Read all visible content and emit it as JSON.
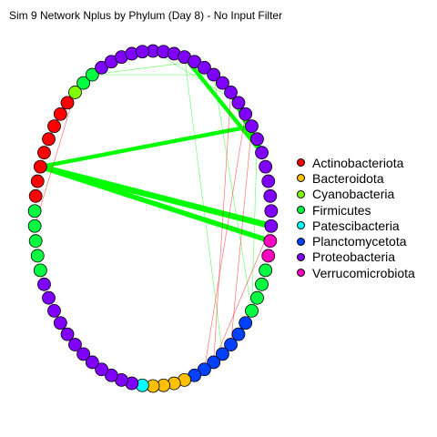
{
  "title": "Sim 9 Network Nplus by Phylum (Day 8) - No Input Filter",
  "phyla": [
    {
      "key": "Actinobacteriota",
      "label": "Actinobacteriota",
      "color": "#ff0000"
    },
    {
      "key": "Bacteroidota",
      "label": "Bacteroidota",
      "color": "#ffc000"
    },
    {
      "key": "Cyanobacteria",
      "label": "Cyanobacteria",
      "color": "#80ff00"
    },
    {
      "key": "Firmicutes",
      "label": "Firmicutes",
      "color": "#00ff40"
    },
    {
      "key": "Patescibacteria",
      "label": "Patescibacteria",
      "color": "#00ffff"
    },
    {
      "key": "Planctomycetota",
      "label": "Planctomycetota",
      "color": "#0040ff"
    },
    {
      "key": "Proteobacteria",
      "label": "Proteobacteria",
      "color": "#8000ff"
    },
    {
      "key": "Verrucomicrobiota",
      "label": "Verrucomicrobiota",
      "color": "#ff00c0"
    }
  ],
  "node_sequence": [
    {
      "phylum": "Proteobacteria",
      "count": 19
    },
    {
      "phylum": "Verrucomicrobiota",
      "count": 2
    },
    {
      "phylum": "Firmicutes",
      "count": 4
    },
    {
      "phylum": "Planctomycetota",
      "count": 7
    },
    {
      "phylum": "Bacteroidota",
      "count": 4
    },
    {
      "phylum": "Patescibacteria",
      "count": 1
    },
    {
      "phylum": "Proteobacteria",
      "count": 12
    },
    {
      "phylum": "Firmicutes",
      "count": 5
    },
    {
      "phylum": "Actinobacteriota",
      "count": 8
    },
    {
      "phylum": "Cyanobacteria",
      "count": 1
    },
    {
      "phylum": "Firmicutes",
      "count": 2
    },
    {
      "phylum": "Proteobacteria",
      "count": 5
    }
  ],
  "edge_colors": {
    "positive": "#00ff00",
    "negative": "#ff0000"
  },
  "edges": [
    {
      "from": 78,
      "to": 13,
      "sign": "positive",
      "weight": 5
    },
    {
      "from": 18,
      "to": 56,
      "sign": "positive",
      "weight": 6
    },
    {
      "from": 19,
      "to": 56,
      "sign": "positive",
      "weight": 5
    },
    {
      "from": 11,
      "to": 56,
      "sign": "positive",
      "weight": 4
    },
    {
      "from": 13,
      "to": 3,
      "sign": "positive",
      "weight": 4
    },
    {
      "from": 76,
      "to": 5,
      "sign": "positive",
      "weight": 1
    },
    {
      "from": 70,
      "to": 9,
      "sign": "positive",
      "weight": 1
    },
    {
      "from": 64,
      "to": 6,
      "sign": "positive",
      "weight": 1
    },
    {
      "from": 64,
      "to": 4,
      "sign": "positive",
      "weight": 1
    },
    {
      "from": 77,
      "to": 11,
      "sign": "positive",
      "weight": 1
    },
    {
      "from": 6,
      "to": 24,
      "sign": "positive",
      "weight": 1
    },
    {
      "from": 3,
      "to": 28,
      "sign": "positive",
      "weight": 1
    },
    {
      "from": 12,
      "to": 24,
      "sign": "positive",
      "weight": 1
    },
    {
      "from": 8,
      "to": 29,
      "sign": "negative",
      "weight": 1
    },
    {
      "from": 10,
      "to": 30,
      "sign": "negative",
      "weight": 1
    },
    {
      "from": 11,
      "to": 27,
      "sign": "negative",
      "weight": 1
    },
    {
      "from": 18,
      "to": 29,
      "sign": "negative",
      "weight": 1
    },
    {
      "from": 72,
      "to": 5,
      "sign": "negative",
      "weight": 1
    },
    {
      "from": 62,
      "to": 52,
      "sign": "negative",
      "weight": 1
    }
  ]
}
